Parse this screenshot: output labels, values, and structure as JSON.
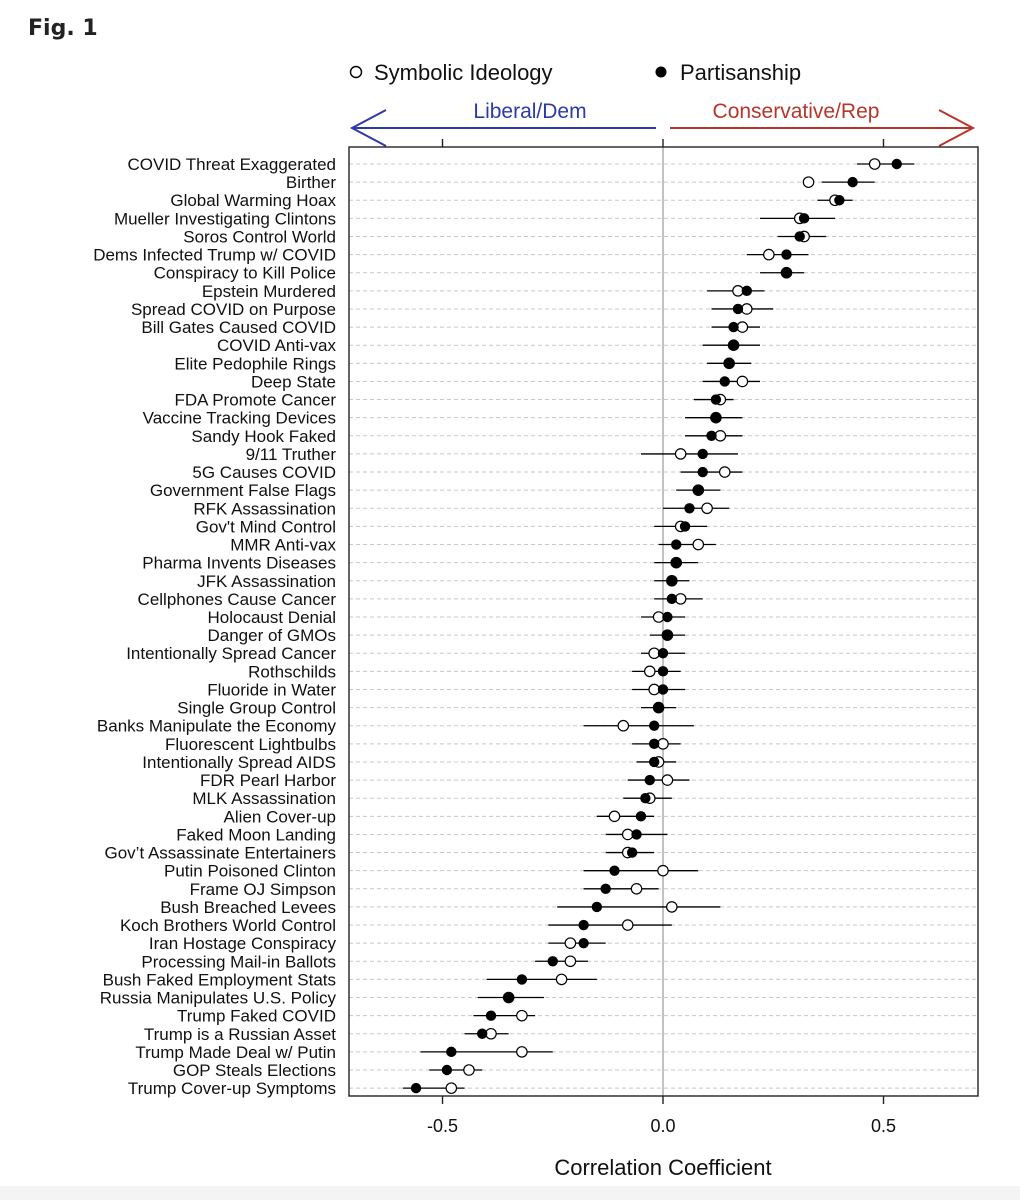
{
  "figure_label": "Fig. 1",
  "colors": {
    "liberal": "#2b3aa8",
    "conservative": "#b8352b",
    "points": "#000000",
    "grid": "#c8c8c8",
    "zero_line": "#9a9a9a"
  },
  "chart_data": {
    "type": "scatter",
    "title": "",
    "xlabel": "Correlation Coefficient",
    "ylabel": "",
    "xlim": [
      -0.71,
      0.71
    ],
    "xticks": [
      -0.5,
      0.0,
      0.5
    ],
    "xtick_labels": [
      "-0.5",
      "0.0",
      "0.5"
    ],
    "legend": {
      "placement": "top",
      "items": [
        {
          "name": "Symbolic Ideology",
          "marker": "open-circle"
        },
        {
          "name": "Partisanship",
          "marker": "filled-circle"
        }
      ]
    },
    "direction_labels": {
      "left": "Liberal/Dem",
      "right": "Conservative/Rep"
    },
    "grid": "horizontal-dashed",
    "categories": [
      "COVID Threat Exaggerated",
      "Birther",
      "Global Warming Hoax",
      "Mueller Investigating Clintons",
      "Soros Control World",
      "Dems Infected Trump w/ COVID",
      "Conspiracy to Kill Police",
      "Epstein Murdered",
      "Spread COVID on Purpose",
      "Bill Gates Caused COVID",
      "COVID Anti-vax",
      "Elite Pedophile Rings",
      "Deep State",
      "FDA Promote Cancer",
      "Vaccine Tracking Devices",
      "Sandy Hook Faked",
      "9/11 Truther",
      "5G Causes COVID",
      "Government False Flags",
      "RFK Assassination",
      "Gov't Mind Control",
      "MMR Anti-vax",
      "Pharma Invents Diseases",
      "JFK Assassination",
      "Cellphones Cause Cancer",
      "Holocaust Denial",
      "Danger of GMOs",
      "Intentionally Spread Cancer",
      "Rothschilds",
      "Fluoride in Water",
      "Single Group Control",
      "Banks Manipulate the Economy",
      "Fluorescent Lightbulbs",
      "Intentionally Spread AIDS",
      "FDR Pearl Harbor",
      "MLK Assassination",
      "Alien Cover-up",
      "Faked Moon Landing",
      "Gov’t Assassinate Entertainers",
      "Putin Poisoned Clinton",
      "Frame OJ Simpson",
      "Bush Breached Levees",
      "Koch Brothers World Control",
      "Iran Hostage Conspiracy",
      "Processing Mail-in Ballots",
      "Bush Faked Employment Stats",
      "Russia Manipulates U.S. Policy",
      "Trump Faked COVID",
      "Trump is a Russian Asset",
      "Trump Made Deal w/ Putin",
      "GOP Steals Elections",
      "Trump Cover-up Symptoms"
    ],
    "series": [
      {
        "name": "Symbolic Ideology",
        "marker": "open-circle",
        "values": [
          0.48,
          0.33,
          0.39,
          0.31,
          0.32,
          0.24,
          0.28,
          0.17,
          0.19,
          0.18,
          0.16,
          0.15,
          0.18,
          0.13,
          0.12,
          0.13,
          0.04,
          0.14,
          0.08,
          0.1,
          0.04,
          0.08,
          0.03,
          0.02,
          0.04,
          -0.01,
          0.01,
          -0.02,
          -0.03,
          -0.02,
          -0.01,
          -0.09,
          0.0,
          -0.01,
          0.01,
          -0.03,
          -0.11,
          -0.08,
          -0.08,
          0.0,
          -0.06,
          0.02,
          -0.08,
          -0.21,
          -0.21,
          -0.23,
          -0.35,
          -0.32,
          -0.39,
          -0.32,
          -0.44,
          -0.48
        ]
      },
      {
        "name": "Partisanship",
        "marker": "filled-circle",
        "values": [
          0.53,
          0.43,
          0.4,
          0.32,
          0.31,
          0.28,
          0.28,
          0.19,
          0.17,
          0.16,
          0.16,
          0.15,
          0.14,
          0.12,
          0.12,
          0.11,
          0.09,
          0.09,
          0.08,
          0.06,
          0.05,
          0.03,
          0.03,
          0.02,
          0.02,
          0.01,
          0.01,
          0.0,
          0.0,
          0.0,
          -0.01,
          -0.02,
          -0.02,
          -0.02,
          -0.03,
          -0.04,
          -0.05,
          -0.06,
          -0.07,
          -0.11,
          -0.13,
          -0.15,
          -0.18,
          -0.18,
          -0.25,
          -0.32,
          -0.35,
          -0.39,
          -0.41,
          -0.48,
          -0.49,
          -0.56
        ],
        "ci_low": [
          0.44,
          0.36,
          0.35,
          0.22,
          0.26,
          0.19,
          0.22,
          0.1,
          0.11,
          0.11,
          0.09,
          0.1,
          0.09,
          0.07,
          0.05,
          0.05,
          -0.05,
          0.04,
          0.03,
          0.0,
          -0.02,
          -0.01,
          -0.02,
          -0.02,
          -0.02,
          -0.05,
          -0.03,
          -0.05,
          -0.07,
          -0.07,
          -0.05,
          -0.18,
          -0.07,
          -0.06,
          -0.08,
          -0.09,
          -0.15,
          -0.13,
          -0.13,
          -0.18,
          -0.18,
          -0.24,
          -0.26,
          -0.26,
          -0.29,
          -0.4,
          -0.42,
          -0.43,
          -0.45,
          -0.55,
          -0.53,
          -0.59
        ],
        "ci_high": [
          0.57,
          0.48,
          0.43,
          0.39,
          0.37,
          0.33,
          0.32,
          0.23,
          0.25,
          0.22,
          0.22,
          0.2,
          0.22,
          0.16,
          0.18,
          0.18,
          0.17,
          0.18,
          0.13,
          0.15,
          0.1,
          0.12,
          0.08,
          0.06,
          0.09,
          0.05,
          0.05,
          0.05,
          0.04,
          0.05,
          0.03,
          0.07,
          0.04,
          0.03,
          0.06,
          0.02,
          -0.02,
          0.01,
          -0.02,
          0.08,
          -0.01,
          0.13,
          0.02,
          -0.13,
          -0.17,
          -0.15,
          -0.27,
          -0.29,
          -0.35,
          -0.25,
          -0.41,
          -0.45
        ]
      }
    ]
  }
}
